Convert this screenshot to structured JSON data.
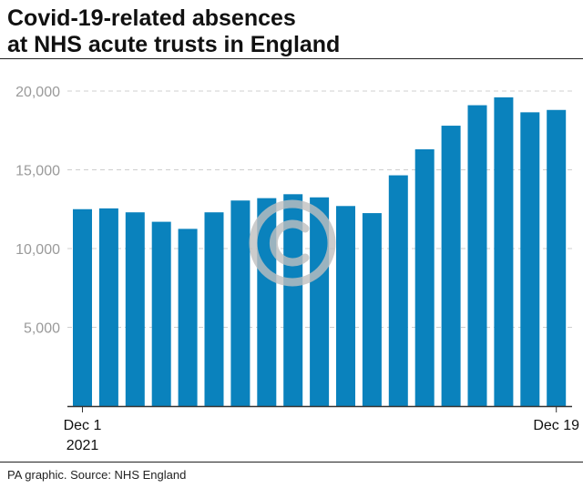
{
  "title_lines": [
    "Covid-19-related absences",
    "at NHS acute trusts in England"
  ],
  "source": "PA graphic. Source: NHS England",
  "colors": {
    "bar": "#0a82bd",
    "grid": "#cfcfcf",
    "axis": "#333333",
    "watermark": "#bfbfbf"
  },
  "watermark_icon": "copyright-icon",
  "chart_data": {
    "type": "bar",
    "title": "Covid-19-related absences at NHS acute trusts in England",
    "xlabel": "",
    "ylabel": "",
    "ylim": [
      0,
      20000
    ],
    "yticks": [
      5000,
      10000,
      15000,
      20000
    ],
    "ytick_labels": [
      "5,000",
      "10,000",
      "15,000",
      "20,000"
    ],
    "x_tick_labels": [
      {
        "index": 0,
        "lines": [
          "Dec 1",
          "2021"
        ]
      },
      {
        "index": 18,
        "lines": [
          "Dec 19"
        ]
      }
    ],
    "grid": true,
    "values": [
      12500,
      12550,
      12300,
      11700,
      11250,
      12300,
      13050,
      13200,
      13450,
      13250,
      12700,
      12250,
      14650,
      16300,
      17800,
      19100,
      19600,
      18650,
      18800
    ]
  }
}
